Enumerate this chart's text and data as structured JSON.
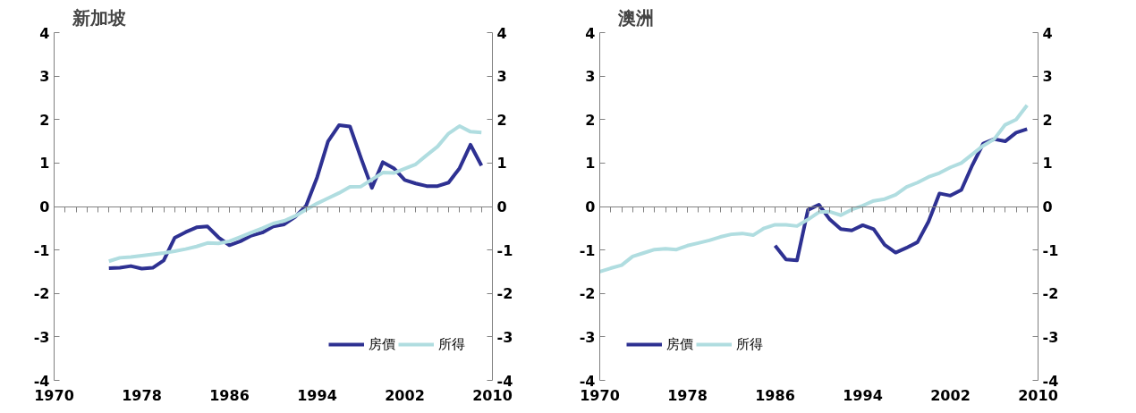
{
  "chart_data": [
    {
      "type": "line",
      "title": "新加坡",
      "x": [
        1975,
        1976,
        1977,
        1978,
        1979,
        1980,
        1981,
        1982,
        1983,
        1984,
        1985,
        1986,
        1987,
        1988,
        1989,
        1990,
        1991,
        1992,
        1993,
        1994,
        1995,
        1996,
        1997,
        1998,
        1999,
        2000,
        2001,
        2002,
        2003,
        2004,
        2005,
        2006,
        2007,
        2008,
        2009
      ],
      "series": [
        {
          "name": "房價",
          "color": "#2e3192",
          "values": [
            -1.42,
            -1.41,
            -1.37,
            -1.43,
            -1.41,
            -1.24,
            -0.72,
            -0.59,
            -0.48,
            -0.46,
            -0.71,
            -0.89,
            -0.8,
            -0.67,
            -0.6,
            -0.46,
            -0.41,
            -0.24,
            0.02,
            0.67,
            1.5,
            1.87,
            1.84,
            1.12,
            0.43,
            1.02,
            0.88,
            0.61,
            0.53,
            0.47,
            0.47,
            0.55,
            0.88,
            1.42,
            0.94
          ]
        },
        {
          "name": "所得",
          "color": "#b0dde0",
          "values": [
            -1.26,
            -1.18,
            -1.16,
            -1.13,
            -1.1,
            -1.07,
            -1.03,
            -0.98,
            -0.92,
            -0.84,
            -0.85,
            -0.8,
            -0.7,
            -0.6,
            -0.5,
            -0.39,
            -0.33,
            -0.22,
            -0.07,
            0.07,
            0.19,
            0.31,
            0.45,
            0.46,
            0.62,
            0.78,
            0.77,
            0.87,
            0.97,
            1.18,
            1.38,
            1.68,
            1.85,
            1.72,
            1.7
          ]
        }
      ],
      "xlim": [
        1970,
        2010
      ],
      "xticks": [
        1970,
        1978,
        1986,
        1994,
        2002,
        2010
      ],
      "ylim": [
        -4,
        4
      ],
      "yticks": [
        -4,
        -3,
        -2,
        -1,
        0,
        1,
        2,
        3,
        4
      ],
      "y2lim": [
        -4,
        4
      ],
      "y2ticks": [
        -4,
        -3,
        -2,
        -1,
        0,
        1,
        2,
        3,
        4
      ],
      "legend": "bottom right",
      "marker": "none",
      "line_style": "solid"
    },
    {
      "type": "line",
      "title": "澳洲",
      "series": [
        {
          "name": "房價",
          "color": "#2e3192",
          "x": [
            1986,
            1987,
            1988,
            1989,
            1990,
            1991,
            1992,
            1993,
            1994,
            1995,
            1996,
            1997,
            1998,
            1999,
            2000,
            2001,
            2002,
            2003,
            2004,
            2005,
            2006,
            2007,
            2008,
            2009
          ],
          "values": [
            -0.9,
            -1.22,
            -1.24,
            -0.08,
            0.04,
            -0.3,
            -0.52,
            -0.55,
            -0.43,
            -0.52,
            -0.88,
            -1.06,
            -0.95,
            -0.82,
            -0.35,
            0.3,
            0.25,
            0.38,
            0.95,
            1.45,
            1.55,
            1.5,
            1.7,
            1.78
          ]
        },
        {
          "name": "所得",
          "color": "#b0dde0",
          "x": [
            1970,
            1971,
            1972,
            1973,
            1974,
            1975,
            1976,
            1977,
            1978,
            1979,
            1980,
            1981,
            1982,
            1983,
            1984,
            1985,
            1986,
            1987,
            1988,
            1989,
            1990,
            1991,
            1992,
            1993,
            1994,
            1995,
            1996,
            1997,
            1998,
            1999,
            2000,
            2001,
            2002,
            2003,
            2004,
            2005,
            2006,
            2007,
            2008,
            2009
          ],
          "values": [
            -1.5,
            -1.42,
            -1.35,
            -1.15,
            -1.07,
            -0.99,
            -0.97,
            -0.99,
            -0.9,
            -0.84,
            -0.78,
            -0.7,
            -0.64,
            -0.62,
            -0.66,
            -0.5,
            -0.42,
            -0.42,
            -0.45,
            -0.3,
            -0.13,
            -0.12,
            -0.2,
            -0.07,
            0.02,
            0.13,
            0.17,
            0.27,
            0.45,
            0.55,
            0.68,
            0.77,
            0.9,
            1.0,
            1.2,
            1.4,
            1.55,
            1.88,
            2.0,
            2.33
          ]
        }
      ],
      "xlim": [
        1970,
        2010
      ],
      "xticks": [
        1970,
        1978,
        1986,
        1994,
        2002,
        2010
      ],
      "ylim": [
        -4,
        4
      ],
      "yticks": [
        -4,
        -3,
        -2,
        -1,
        0,
        1,
        2,
        3,
        4
      ],
      "y2lim": [
        -4,
        4
      ],
      "y2ticks": [
        -4,
        -3,
        -2,
        -1,
        0,
        1,
        2,
        3,
        4
      ],
      "legend": "bottom left",
      "marker": "none",
      "line_style": "solid"
    }
  ]
}
